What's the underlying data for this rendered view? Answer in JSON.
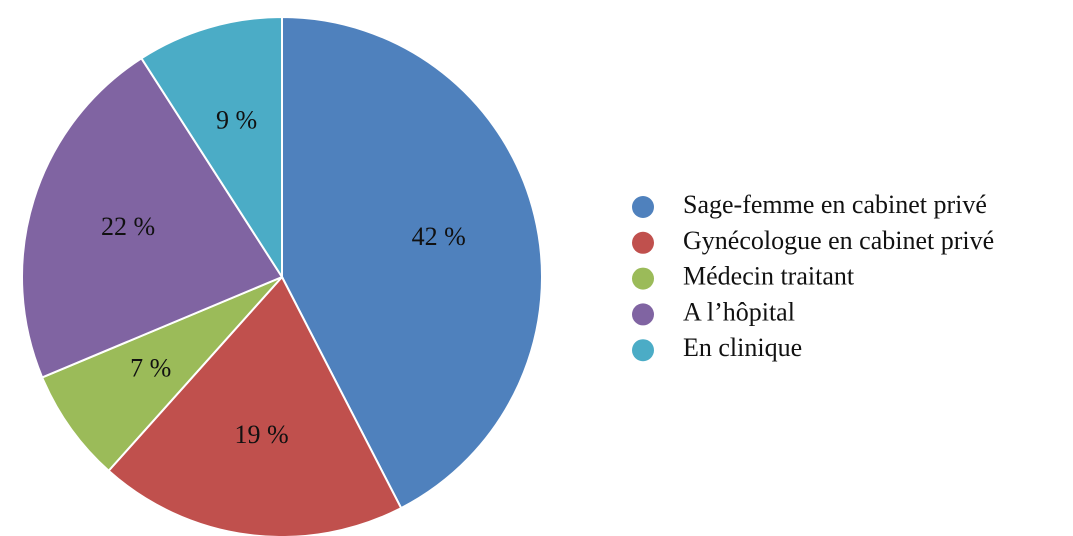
{
  "chart_data": {
    "type": "pie",
    "categories": [
      "Sage-femme en cabinet privé",
      "Gynécologue en cabinet privé",
      "Médecin traitant",
      "A l’hôpital",
      "En clinique"
    ],
    "values": [
      42,
      19,
      7,
      22,
      9
    ],
    "value_labels": [
      "42 %",
      "19 %",
      "7 %",
      "22 %",
      "9 %"
    ],
    "colors": [
      "#4f81bd",
      "#c0504d",
      "#9bbb59",
      "#8064a2",
      "#4bacc6"
    ],
    "legend": "right"
  }
}
